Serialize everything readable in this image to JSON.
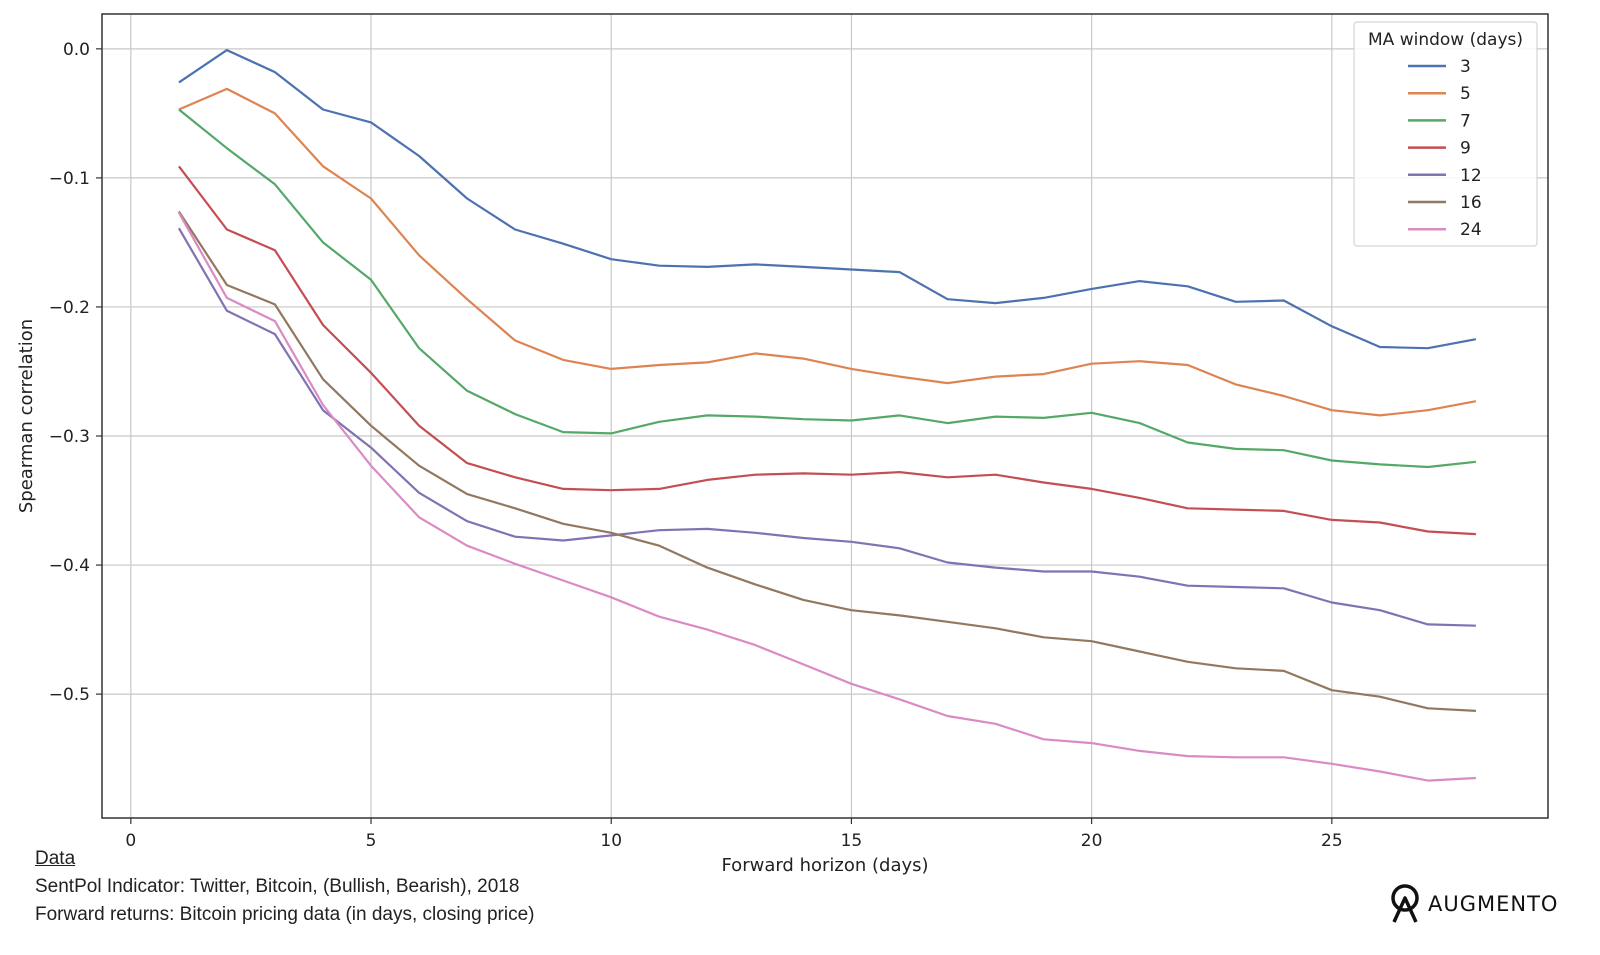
{
  "chart_data": {
    "type": "line",
    "title": "",
    "xlabel": "Forward horizon (days)",
    "ylabel": "Spearman correlation",
    "xlim": [
      -0.6,
      29.5
    ],
    "ylim": [
      -0.596,
      0.027
    ],
    "xticks": [
      0,
      5,
      10,
      15,
      20,
      25
    ],
    "yticks": [
      0.0,
      -0.1,
      -0.2,
      -0.3,
      -0.4,
      -0.5
    ],
    "ytick_labels": [
      "0.0",
      "−0.1",
      "−0.2",
      "−0.3",
      "−0.4",
      "−0.5"
    ],
    "grid": true,
    "legend_title": "MA window (days)",
    "legend_position": "top-right",
    "x": [
      1,
      2,
      3,
      4,
      5,
      6,
      7,
      8,
      9,
      10,
      11,
      12,
      13,
      14,
      15,
      16,
      17,
      18,
      19,
      20,
      21,
      22,
      23,
      24,
      25,
      26,
      27,
      28
    ],
    "series": [
      {
        "name": "3",
        "color": "#4c72b0",
        "values": [
          -0.026,
          -0.001,
          -0.018,
          -0.047,
          -0.057,
          -0.083,
          -0.116,
          -0.14,
          -0.151,
          -0.163,
          -0.168,
          -0.169,
          -0.167,
          -0.169,
          -0.171,
          -0.173,
          -0.194,
          -0.197,
          -0.193,
          -0.186,
          -0.18,
          -0.184,
          -0.196,
          -0.195,
          -0.215,
          -0.231,
          -0.232,
          -0.225
        ]
      },
      {
        "name": "5",
        "color": "#dd8452",
        "values": [
          -0.047,
          -0.031,
          -0.05,
          -0.091,
          -0.116,
          -0.16,
          -0.194,
          -0.226,
          -0.241,
          -0.248,
          -0.245,
          -0.243,
          -0.236,
          -0.24,
          -0.248,
          -0.254,
          -0.259,
          -0.254,
          -0.252,
          -0.244,
          -0.242,
          -0.245,
          -0.26,
          -0.269,
          -0.28,
          -0.284,
          -0.28,
          -0.273
        ]
      },
      {
        "name": "7",
        "color": "#55a868",
        "values": [
          -0.047,
          -0.077,
          -0.105,
          -0.15,
          -0.179,
          -0.232,
          -0.265,
          -0.283,
          -0.297,
          -0.298,
          -0.289,
          -0.284,
          -0.285,
          -0.287,
          -0.288,
          -0.284,
          -0.29,
          -0.285,
          -0.286,
          -0.282,
          -0.29,
          -0.305,
          -0.31,
          -0.311,
          -0.319,
          -0.322,
          -0.324,
          -0.32
        ]
      },
      {
        "name": "9",
        "color": "#c44e52",
        "values": [
          -0.091,
          -0.14,
          -0.156,
          -0.214,
          -0.251,
          -0.292,
          -0.321,
          -0.332,
          -0.341,
          -0.342,
          -0.341,
          -0.334,
          -0.33,
          -0.329,
          -0.33,
          -0.328,
          -0.332,
          -0.33,
          -0.336,
          -0.341,
          -0.348,
          -0.356,
          -0.357,
          -0.358,
          -0.365,
          -0.367,
          -0.374,
          -0.376
        ]
      },
      {
        "name": "12",
        "color": "#8172b3",
        "values": [
          -0.139,
          -0.203,
          -0.221,
          -0.28,
          -0.309,
          -0.344,
          -0.366,
          -0.378,
          -0.381,
          -0.377,
          -0.373,
          -0.372,
          -0.375,
          -0.379,
          -0.382,
          -0.387,
          -0.398,
          -0.402,
          -0.405,
          -0.405,
          -0.409,
          -0.416,
          -0.417,
          -0.418,
          -0.429,
          -0.435,
          -0.446,
          -0.447
        ]
      },
      {
        "name": "16",
        "color": "#937860",
        "values": [
          -0.126,
          -0.183,
          -0.198,
          -0.256,
          -0.292,
          -0.323,
          -0.345,
          -0.356,
          -0.368,
          -0.375,
          -0.385,
          -0.402,
          -0.415,
          -0.427,
          -0.435,
          -0.439,
          -0.444,
          -0.449,
          -0.456,
          -0.459,
          -0.467,
          -0.475,
          -0.48,
          -0.482,
          -0.497,
          -0.502,
          -0.511,
          -0.513
        ]
      },
      {
        "name": "24",
        "color": "#da8bc3",
        "values": [
          -0.127,
          -0.193,
          -0.211,
          -0.276,
          -0.323,
          -0.363,
          -0.385,
          -0.399,
          -0.412,
          -0.425,
          -0.44,
          -0.45,
          -0.462,
          -0.477,
          -0.492,
          -0.504,
          -0.517,
          -0.523,
          -0.535,
          -0.538,
          -0.544,
          -0.548,
          -0.549,
          -0.549,
          -0.554,
          -0.56,
          -0.567,
          -0.565
        ]
      }
    ]
  },
  "footer": {
    "heading": "Data",
    "line1": "SentPol Indicator: Twitter, Bitcoin, (Bullish, Bearish), 2018",
    "line2": "Forward returns: Bitcoin pricing data (in days, closing price)"
  },
  "brand": {
    "name": "AUGMENTO",
    "logo_icon": "augmento-logo-icon"
  }
}
